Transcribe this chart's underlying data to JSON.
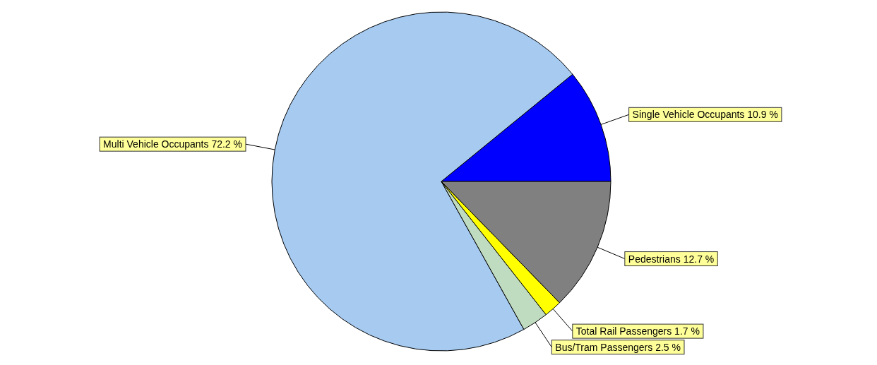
{
  "chart_data": {
    "type": "pie",
    "categories": [
      "Single Vehicle Occupants",
      "Multi Vehicle Occupants",
      "Bus/Tram Passengers",
      "Total Rail Passengers",
      "Pedestrians"
    ],
    "values": [
      10.9,
      72.2,
      2.5,
      1.7,
      12.7
    ],
    "value_labels": [
      "10.9 %",
      "72.2 %",
      "2.5 %",
      "1.7 %",
      "12.7 %"
    ],
    "colors": [
      "#0000ff",
      "#a6caf0",
      "#c0dcc0",
      "#ffff00",
      "#808080"
    ],
    "legend": false
  }
}
